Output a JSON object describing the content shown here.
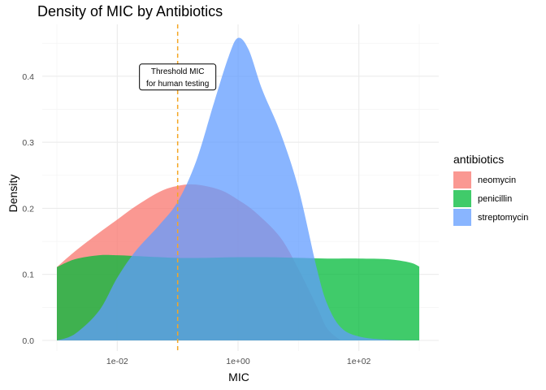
{
  "chart_data": {
    "type": "area",
    "title": "Density of MIC by Antibiotics",
    "xlabel": "MIC",
    "ylabel": "Density",
    "x_scale": "log10",
    "xlim": [
      0.001,
      1000
    ],
    "ylim": [
      0,
      0.46
    ],
    "x_ticks": [
      {
        "value": 0.01,
        "label": "1e-02"
      },
      {
        "value": 1,
        "label": "1e+00"
      },
      {
        "value": 100,
        "label": "1e+02"
      }
    ],
    "y_ticks": [
      {
        "value": 0.0,
        "label": "0.0"
      },
      {
        "value": 0.1,
        "label": "0.1"
      },
      {
        "value": 0.2,
        "label": "0.2"
      },
      {
        "value": 0.3,
        "label": "0.3"
      },
      {
        "value": 0.4,
        "label": "0.4"
      }
    ],
    "grid": true,
    "legend": {
      "title": "antibiotics",
      "position": "right"
    },
    "series": [
      {
        "name": "neomycin",
        "color": "#F8766D",
        "x": [
          0.001,
          0.002,
          0.005,
          0.01,
          0.02,
          0.05,
          0.1,
          0.2,
          0.5,
          1,
          2,
          5,
          10,
          20,
          30,
          50
        ],
        "y": [
          0.111,
          0.135,
          0.163,
          0.183,
          0.203,
          0.225,
          0.234,
          0.236,
          0.228,
          0.213,
          0.193,
          0.156,
          0.108,
          0.052,
          0.018,
          0.0
        ]
      },
      {
        "name": "penicillin",
        "color": "#00BA38",
        "x": [
          0.001,
          0.002,
          0.005,
          0.01,
          0.03,
          0.1,
          0.3,
          1,
          3,
          10,
          30,
          100,
          300,
          700,
          1000
        ],
        "y": [
          0.111,
          0.123,
          0.129,
          0.129,
          0.127,
          0.125,
          0.125,
          0.126,
          0.126,
          0.125,
          0.124,
          0.124,
          0.123,
          0.118,
          0.112
        ]
      },
      {
        "name": "streptomycin",
        "color": "#619CFF",
        "x": [
          0.001,
          0.002,
          0.005,
          0.01,
          0.02,
          0.05,
          0.1,
          0.2,
          0.4,
          0.7,
          1,
          1.5,
          2.5,
          5,
          10,
          20,
          30,
          50,
          100,
          300,
          1000
        ],
        "y": [
          0.0,
          0.01,
          0.045,
          0.095,
          0.135,
          0.175,
          0.21,
          0.27,
          0.36,
          0.43,
          0.458,
          0.44,
          0.38,
          0.315,
          0.23,
          0.11,
          0.055,
          0.02,
          0.006,
          0.001,
          0.0
        ]
      }
    ],
    "annotations": {
      "threshold_x": 0.1,
      "threshold_color": "#F5A623",
      "label_lines": [
        "Threshold MIC",
        "for human testing"
      ],
      "label_x": 0.1,
      "label_y": 0.4
    }
  }
}
